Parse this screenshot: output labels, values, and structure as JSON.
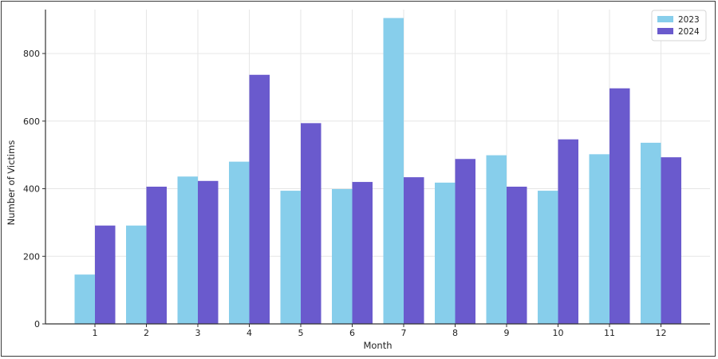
{
  "chart_data": {
    "type": "bar",
    "title": "",
    "xlabel": "Month",
    "ylabel": "Number of Victims",
    "categories": [
      "1",
      "2",
      "3",
      "4",
      "5",
      "6",
      "7",
      "8",
      "9",
      "10",
      "11",
      "12"
    ],
    "series": [
      {
        "name": "2023",
        "color": "#87ceeb",
        "values": [
          146,
          291,
          436,
          480,
          394,
          399,
          905,
          418,
          499,
          394,
          502,
          536
        ]
      },
      {
        "name": "2024",
        "color": "#6a5acd",
        "values": [
          291,
          406,
          423,
          737,
          594,
          420,
          434,
          488,
          406,
          546,
          697,
          493
        ]
      }
    ],
    "ylim": [
      0,
      930
    ],
    "yticks": [
      0,
      200,
      400,
      600,
      800
    ],
    "grid": true,
    "legend_position": "top-right"
  }
}
